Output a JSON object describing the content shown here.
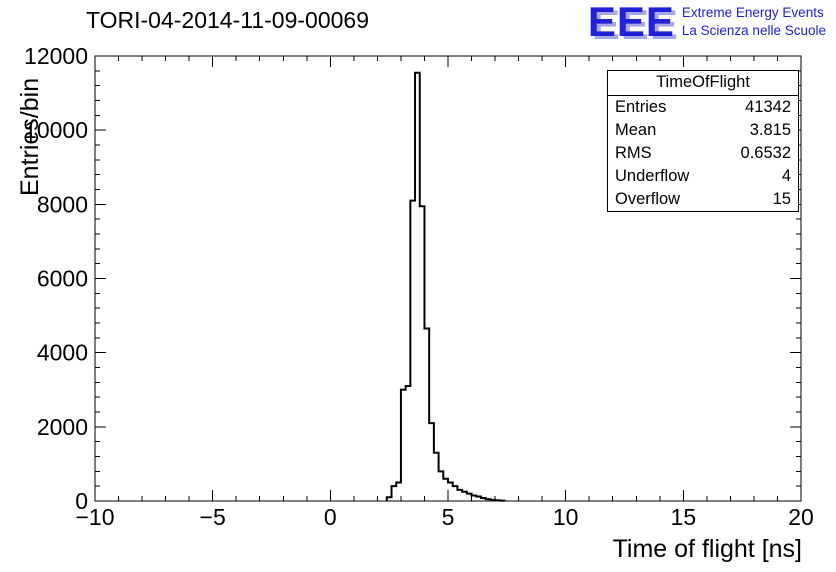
{
  "page": {
    "title": "TORI-04-2014-11-09-00069"
  },
  "logo": {
    "text": "EEE",
    "tagline1": "Extreme Energy Events",
    "tagline2": "La Scienza nelle Scuole",
    "color": "#2121d8",
    "shadow_color": "#a7a7e8"
  },
  "stats": {
    "title": "TimeOfFlight",
    "rows": [
      {
        "label": "Entries",
        "value": "41342"
      },
      {
        "label": "Mean",
        "value": "3.815"
      },
      {
        "label": "RMS",
        "value": "0.6532"
      },
      {
        "label": "Underflow",
        "value": "4"
      },
      {
        "label": "Overflow",
        "value": "15"
      }
    ]
  },
  "chart_data": {
    "type": "bar",
    "subtype": "step-histogram",
    "title": "TORI-04-2014-11-09-00069",
    "xlabel": "Time of flight [ns]",
    "ylabel": "Entries/bin",
    "xlim": [
      -10,
      20
    ],
    "ylim": [
      0,
      12000
    ],
    "grid": false,
    "line_color": "#000000",
    "x_ticks": [
      -10,
      -5,
      0,
      5,
      10,
      15,
      20
    ],
    "x_tick_labels": [
      "−10",
      "−5",
      "0",
      "5",
      "10",
      "15",
      "20"
    ],
    "y_ticks": [
      0,
      2000,
      4000,
      6000,
      8000,
      10000,
      12000
    ],
    "y_tick_labels": [
      "0",
      "2000",
      "4000",
      "6000",
      "8000",
      "10000",
      "12000"
    ],
    "x_minor_step": 1,
    "y_minor_step": 400,
    "bins": {
      "start": 2.4,
      "width": 0.2,
      "counts": [
        100,
        400,
        500,
        3000,
        3100,
        8100,
        11550,
        7950,
        4650,
        2100,
        1300,
        800,
        600,
        500,
        400,
        300,
        250,
        200,
        150,
        120,
        80,
        50,
        30,
        20,
        10
      ]
    }
  }
}
